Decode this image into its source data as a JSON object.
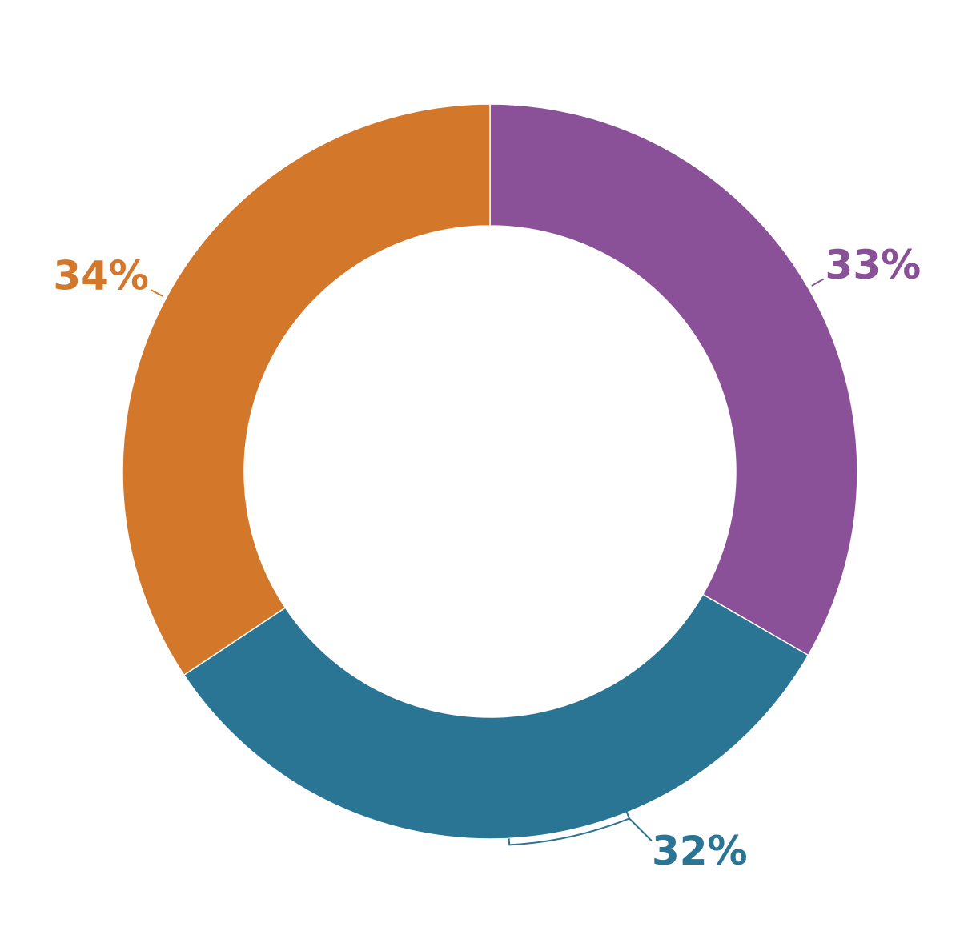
{
  "chart_data": {
    "type": "donut",
    "values": [
      33,
      32,
      34
    ],
    "value_labels": [
      "33%",
      "32%",
      "34%"
    ],
    "colors": [
      "#8a5199",
      "#2a7494",
      "#d3782a"
    ]
  }
}
